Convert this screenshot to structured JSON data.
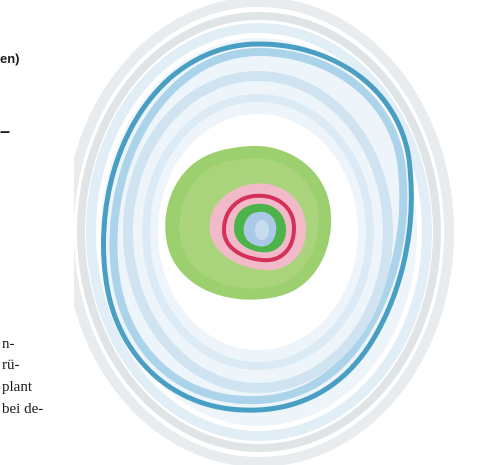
{
  "text_fragments": {
    "heading": "en)",
    "dash": "–",
    "body_lines": [
      "n-",
      "rü-",
      "plant",
      "bei de-"
    ]
  },
  "figure": {
    "colors": {
      "outer_band": "#dfe4e6",
      "pale_blue": "#cfe3f1",
      "blue": "#7fbde0",
      "dark_teal": "#2b8fb8",
      "green": "#9ccf6e",
      "light_green": "#c7e3a8",
      "pink": "#f2b9c8",
      "red": "#d4315a",
      "bright_green": "#4bb34a",
      "center_blue": "#a9c9e6"
    }
  }
}
